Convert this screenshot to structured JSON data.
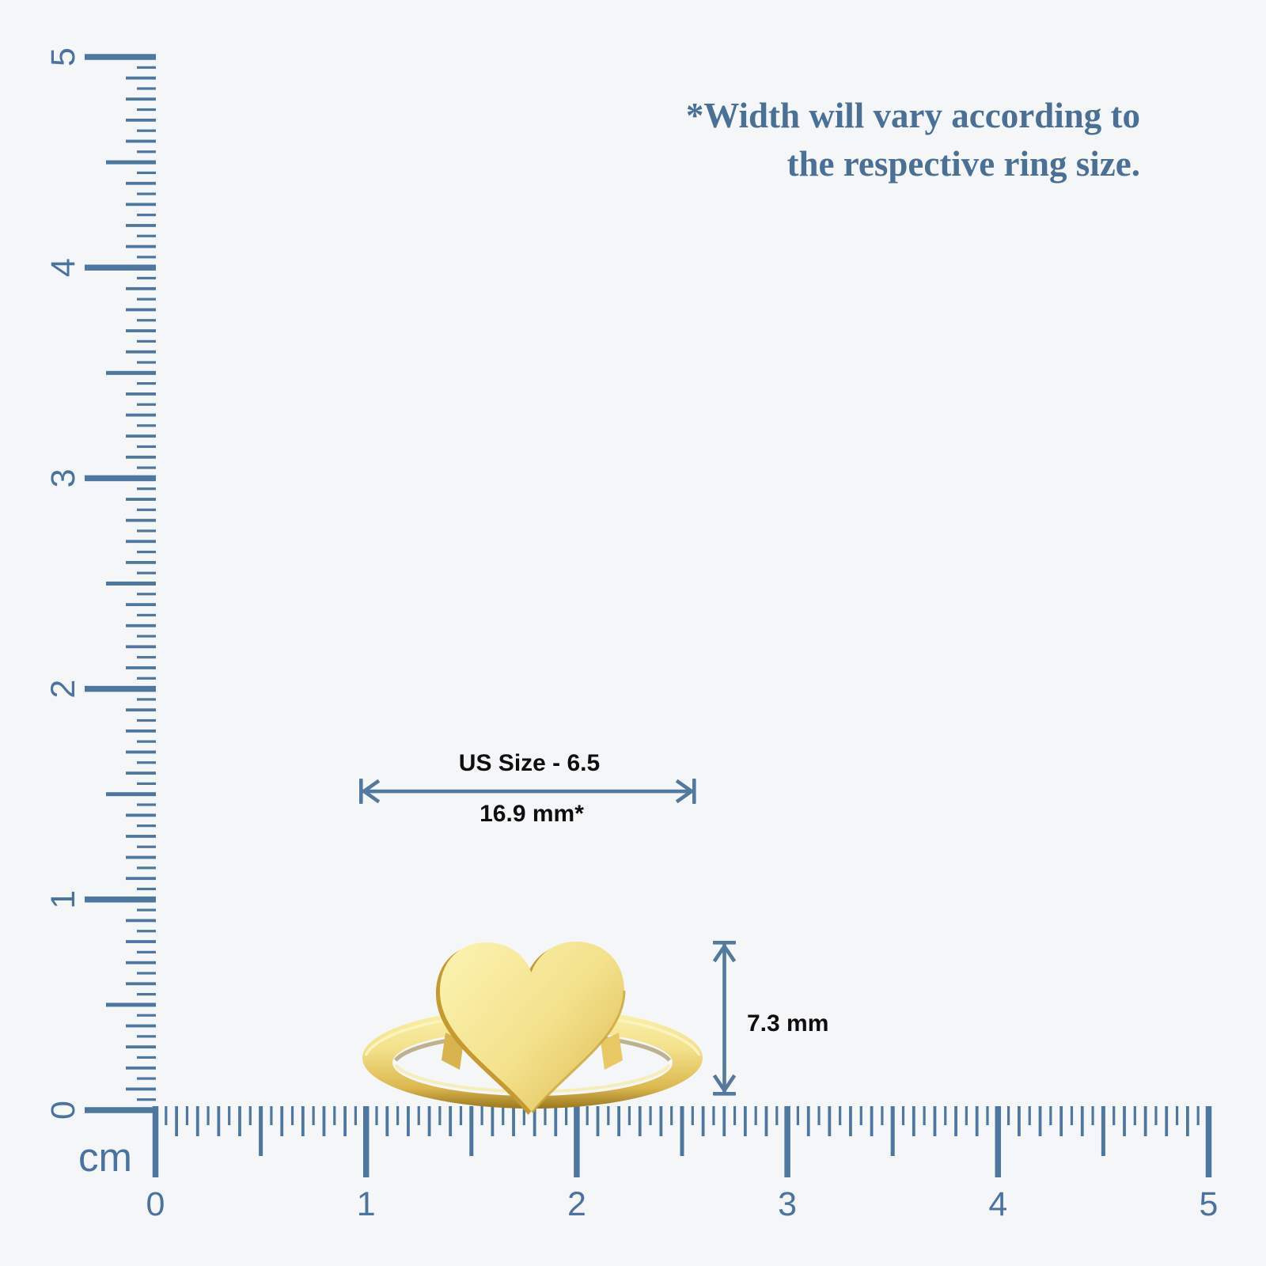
{
  "note": {
    "line1": "*Width will vary according to",
    "line2": "the respective ring size."
  },
  "rulers": {
    "unit_label": "cm",
    "vertical": {
      "labels": [
        "0",
        "1",
        "2",
        "3",
        "4",
        "5"
      ]
    },
    "horizontal": {
      "labels": [
        "0",
        "1",
        "2",
        "3",
        "4",
        "5"
      ]
    }
  },
  "measurements": {
    "ring_size_label": "US Size - 6.5",
    "width_label": "16.9 mm*",
    "height_label": "7.3 mm"
  },
  "colors": {
    "background": "#f5f6f8",
    "ruler_ticks": "#4e779f",
    "ruler_numbers": "#4b73a0",
    "note_text": "#4a7096",
    "arrow": "#54799f",
    "measure_text": "#0e0e0e",
    "gold_light": "#fbf2ae",
    "gold_mid": "#f3e18c",
    "gold_deep": "#dcb84f",
    "gold_dark": "#957318",
    "gold_edge": "#c49a31"
  }
}
